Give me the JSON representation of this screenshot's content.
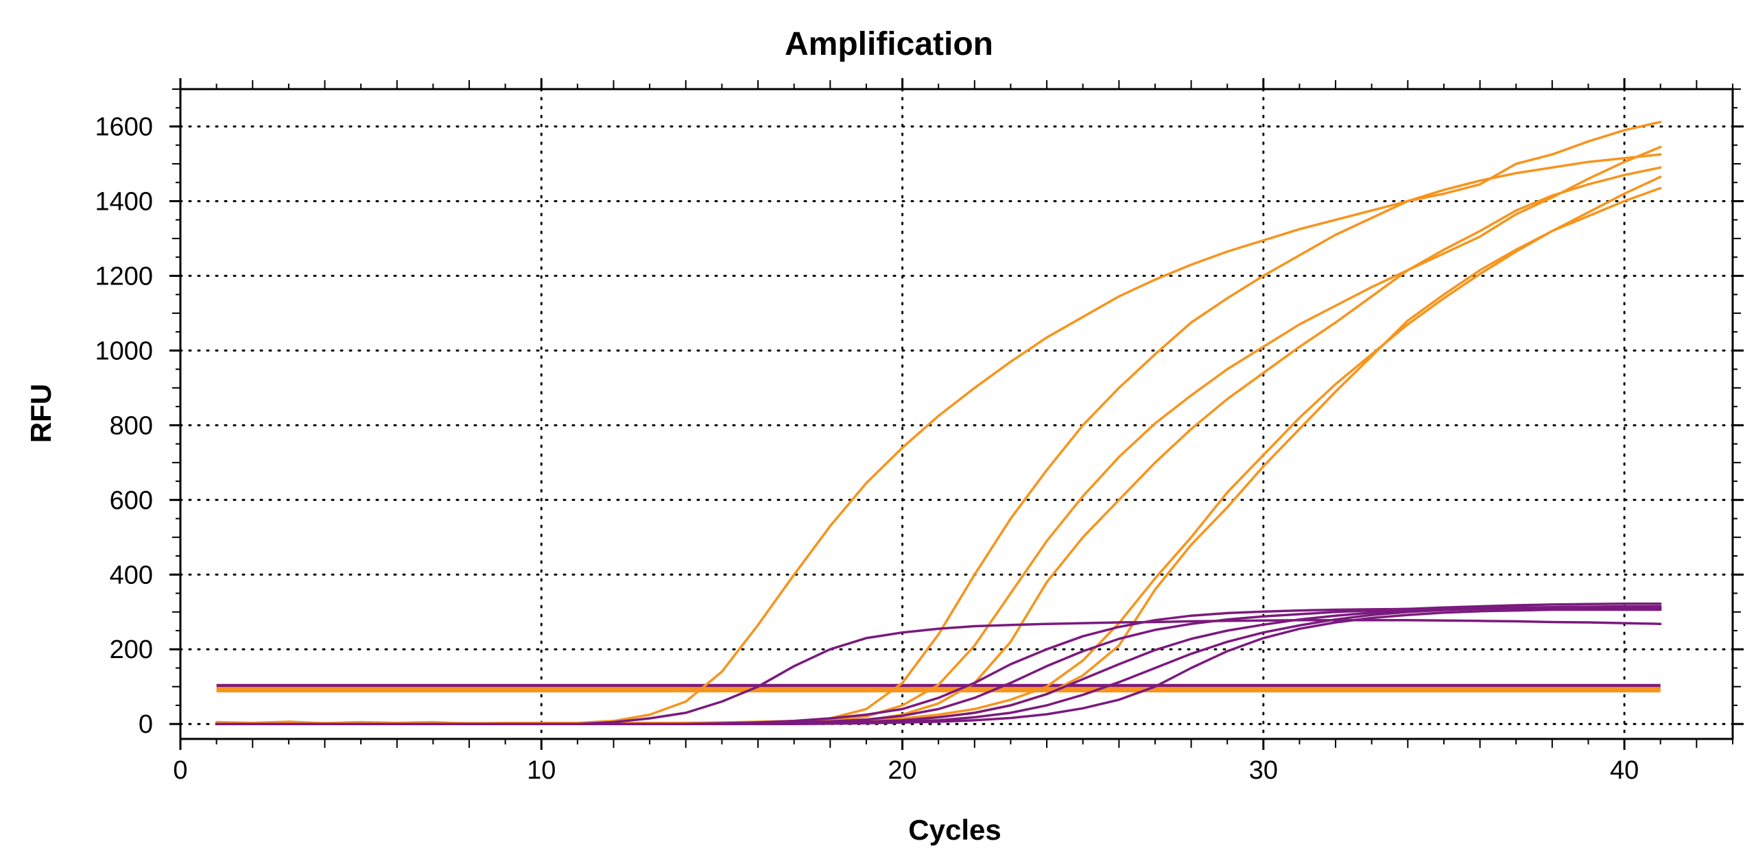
{
  "chart_data": {
    "type": "line",
    "title": "Amplification",
    "xlabel": "Cycles",
    "ylabel": "RFU",
    "xlim": [
      0,
      43
    ],
    "ylim": [
      -40,
      1700
    ],
    "x_ticks": [
      "0",
      "10",
      "20",
      "30",
      "40"
    ],
    "x_tick_values": [
      0,
      10,
      20,
      30,
      40
    ],
    "y_ticks": [
      "0",
      "200",
      "400",
      "600",
      "800",
      "1000",
      "1200",
      "1400",
      "1600"
    ],
    "y_tick_values": [
      0,
      200,
      400,
      600,
      800,
      1000,
      1200,
      1400,
      1600
    ],
    "grid": "dotted",
    "colors": {
      "orange": "#F7941D",
      "purple": "#7B1A7E"
    },
    "x": [
      1,
      2,
      3,
      4,
      5,
      6,
      7,
      8,
      9,
      10,
      11,
      12,
      13,
      14,
      15,
      16,
      17,
      18,
      19,
      20,
      21,
      22,
      23,
      24,
      25,
      26,
      27,
      28,
      29,
      30,
      31,
      32,
      33,
      34,
      35,
      36,
      37,
      38,
      39,
      40,
      41
    ],
    "thresholds": [
      {
        "color": "purple",
        "y": 100
      },
      {
        "color": "orange",
        "y": 92
      }
    ],
    "series": [
      {
        "color": "orange",
        "values": [
          5,
          3,
          6,
          2,
          5,
          3,
          5,
          1,
          3,
          3,
          3,
          8,
          25,
          60,
          140,
          265,
          400,
          530,
          645,
          740,
          825,
          900,
          970,
          1035,
          1090,
          1145,
          1190,
          1230,
          1265,
          1295,
          1325,
          1350,
          1375,
          1400,
          1420,
          1445,
          1500,
          1525,
          1560,
          1590,
          1612
        ]
      },
      {
        "color": "orange",
        "values": [
          2,
          2,
          2,
          2,
          2,
          2,
          2,
          2,
          2,
          2,
          2,
          2,
          3,
          3,
          4,
          6,
          8,
          15,
          40,
          110,
          240,
          400,
          550,
          680,
          800,
          900,
          990,
          1075,
          1140,
          1200,
          1255,
          1310,
          1355,
          1400,
          1430,
          1455,
          1475,
          1490,
          1505,
          1515,
          1525
        ]
      },
      {
        "color": "orange",
        "values": [
          2,
          2,
          2,
          2,
          2,
          2,
          2,
          2,
          2,
          2,
          2,
          2,
          2,
          3,
          3,
          4,
          6,
          10,
          20,
          50,
          105,
          210,
          350,
          490,
          610,
          715,
          805,
          880,
          950,
          1010,
          1070,
          1120,
          1170,
          1215,
          1260,
          1305,
          1365,
          1410,
          1460,
          1505,
          1545
        ]
      },
      {
        "color": "orange",
        "values": [
          2,
          2,
          2,
          2,
          2,
          2,
          2,
          2,
          2,
          2,
          2,
          2,
          2,
          3,
          3,
          3,
          4,
          6,
          10,
          25,
          55,
          110,
          220,
          380,
          500,
          600,
          700,
          790,
          870,
          940,
          1010,
          1075,
          1145,
          1215,
          1270,
          1320,
          1375,
          1415,
          1445,
          1470,
          1490
        ]
      },
      {
        "color": "orange",
        "values": [
          1,
          1,
          1,
          1,
          1,
          1,
          1,
          1,
          1,
          1,
          1,
          1,
          1,
          1,
          2,
          2,
          3,
          5,
          8,
          15,
          25,
          40,
          65,
          100,
          170,
          270,
          390,
          500,
          620,
          720,
          820,
          910,
          990,
          1070,
          1140,
          1205,
          1265,
          1320,
          1370,
          1420,
          1465
        ]
      },
      {
        "color": "orange",
        "values": [
          1,
          1,
          1,
          1,
          1,
          1,
          1,
          1,
          1,
          1,
          1,
          1,
          1,
          1,
          2,
          2,
          3,
          4,
          6,
          10,
          18,
          30,
          50,
          80,
          130,
          210,
          360,
          480,
          580,
          690,
          790,
          890,
          985,
          1080,
          1150,
          1215,
          1270,
          1320,
          1360,
          1400,
          1435
        ]
      },
      {
        "color": "purple",
        "values": [
          0,
          0,
          0,
          0,
          0,
          0,
          0,
          0,
          0,
          0,
          0,
          5,
          15,
          30,
          60,
          100,
          155,
          200,
          230,
          245,
          255,
          262,
          265,
          268,
          270,
          272,
          273,
          275,
          276,
          277,
          278,
          278,
          278,
          278,
          277,
          276,
          275,
          273,
          272,
          270,
          268
        ]
      },
      {
        "color": "purple",
        "values": [
          0,
          0,
          0,
          0,
          0,
          0,
          0,
          0,
          0,
          0,
          0,
          0,
          0,
          0,
          2,
          4,
          8,
          15,
          25,
          40,
          70,
          110,
          160,
          200,
          235,
          260,
          278,
          290,
          297,
          301,
          304,
          306,
          307,
          308,
          309,
          310,
          310,
          310,
          310,
          310,
          310
        ]
      },
      {
        "color": "purple",
        "values": [
          0,
          0,
          0,
          0,
          0,
          0,
          0,
          0,
          0,
          0,
          0,
          0,
          0,
          0,
          1,
          2,
          4,
          7,
          12,
          22,
          40,
          70,
          110,
          155,
          195,
          228,
          252,
          268,
          280,
          288,
          294,
          300,
          304,
          308,
          312,
          315,
          318,
          320,
          321,
          322,
          322
        ]
      },
      {
        "color": "purple",
        "values": [
          0,
          0,
          0,
          0,
          0,
          0,
          0,
          0,
          0,
          0,
          0,
          0,
          0,
          0,
          0,
          1,
          2,
          4,
          6,
          10,
          18,
          30,
          50,
          80,
          120,
          160,
          198,
          228,
          250,
          266,
          280,
          290,
          298,
          304,
          308,
          310,
          312,
          313,
          314,
          315,
          315
        ]
      },
      {
        "color": "purple",
        "values": [
          0,
          0,
          0,
          0,
          0,
          0,
          0,
          0,
          0,
          0,
          0,
          0,
          0,
          0,
          0,
          0,
          1,
          2,
          4,
          6,
          10,
          18,
          30,
          50,
          78,
          112,
          150,
          188,
          220,
          245,
          264,
          280,
          292,
          300,
          305,
          308,
          310,
          312,
          313,
          314,
          315
        ]
      },
      {
        "color": "purple",
        "values": [
          0,
          0,
          0,
          0,
          0,
          0,
          0,
          0,
          0,
          0,
          0,
          0,
          0,
          0,
          0,
          0,
          0,
          1,
          2,
          4,
          6,
          10,
          16,
          26,
          42,
          65,
          100,
          150,
          195,
          230,
          255,
          272,
          284,
          292,
          298,
          302,
          304,
          306,
          306,
          306,
          306
        ]
      }
    ]
  }
}
